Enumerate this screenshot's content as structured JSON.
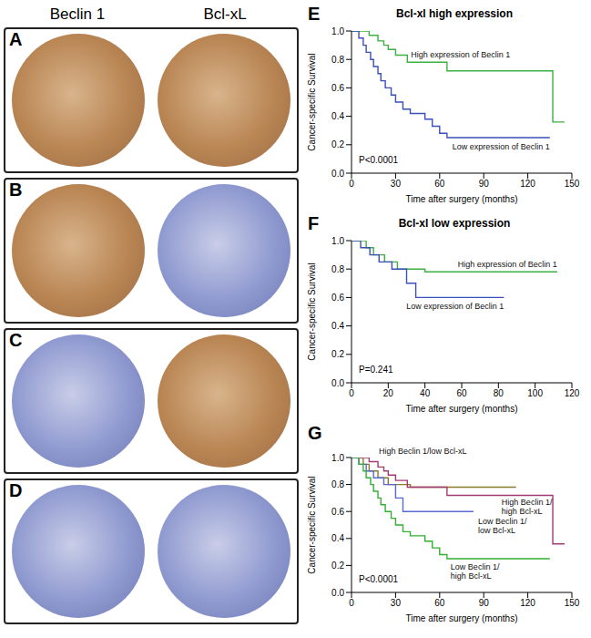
{
  "ihc_figure": {
    "column_headers": [
      "Beclin 1",
      "Bcl-xL"
    ],
    "rows": [
      "A",
      "B",
      "C",
      "D"
    ]
  },
  "chart_data": [
    {
      "type": "line",
      "panel": "E",
      "title": "Bcl-xl high expression",
      "x_label": "Time after surgery (months)",
      "y_label": "Cancer-specific Survival",
      "xlim": [
        0,
        150
      ],
      "xticks": [
        0,
        30,
        60,
        90,
        120,
        150
      ],
      "ylim": [
        0,
        1
      ],
      "yticks": [
        {
          "value": 0,
          "label": "0.0"
        },
        {
          "value": 0.2,
          "label": "0.2"
        },
        {
          "value": 0.4,
          "label": "0.4"
        },
        {
          "value": 0.6,
          "label": "0.6"
        },
        {
          "value": 0.8,
          "label": "0.8"
        },
        {
          "value": 1,
          "label": "1.0"
        }
      ],
      "grid": false,
      "line_style": "step",
      "annotations": [
        "P<0.0001"
      ],
      "series": [
        {
          "name": "High expression of Beclin 1",
          "color": "#3cb043",
          "x": [
            0,
            12,
            18,
            22,
            25,
            30,
            38,
            65,
            137,
            145
          ],
          "values": [
            1,
            0.97,
            0.93,
            0.9,
            0.87,
            0.83,
            0.78,
            0.72,
            0.36,
            0.36
          ]
        },
        {
          "name": "Low expression of Beclin 1",
          "color": "#3a4fb8",
          "x": [
            0,
            5,
            8,
            10,
            13,
            15,
            18,
            20,
            23,
            27,
            30,
            35,
            40,
            50,
            55,
            60,
            65,
            135
          ],
          "values": [
            1,
            0.95,
            0.9,
            0.85,
            0.8,
            0.75,
            0.7,
            0.65,
            0.6,
            0.55,
            0.5,
            0.45,
            0.42,
            0.38,
            0.33,
            0.28,
            0.25,
            0.25
          ]
        }
      ]
    },
    {
      "type": "line",
      "panel": "F",
      "title": "Bcl-xl low expression",
      "x_label": "Time after surgery (months)",
      "y_label": "Cancer-specific Survival",
      "xlim": [
        0,
        120
      ],
      "xticks": [
        0,
        20,
        40,
        60,
        80,
        100,
        120
      ],
      "ylim": [
        0,
        1
      ],
      "yticks": [
        {
          "value": 0,
          "label": "0.0"
        },
        {
          "value": 0.2,
          "label": "0.2"
        },
        {
          "value": 0.4,
          "label": "0.4"
        },
        {
          "value": 0.6,
          "label": "0.6"
        },
        {
          "value": 0.8,
          "label": "0.8"
        },
        {
          "value": 1,
          "label": "1.0"
        }
      ],
      "grid": false,
      "line_style": "step",
      "annotations": [
        "P=0.241"
      ],
      "series": [
        {
          "name": "High expression of Beclin 1",
          "color": "#3cb043",
          "x": [
            0,
            8,
            12,
            18,
            25,
            40,
            112
          ],
          "values": [
            1,
            0.95,
            0.9,
            0.85,
            0.8,
            0.78,
            0.78
          ]
        },
        {
          "name": "Low expression of Beclin 1",
          "color": "#3a4fb8",
          "x": [
            0,
            5,
            10,
            15,
            22,
            30,
            35,
            83
          ],
          "values": [
            1,
            0.95,
            0.9,
            0.85,
            0.8,
            0.7,
            0.6,
            0.6
          ]
        }
      ]
    },
    {
      "type": "line",
      "panel": "G",
      "x_label": "Time after surgery (months)",
      "y_label": "Cancer-specific Survival",
      "xlim": [
        0,
        150
      ],
      "xticks": [
        0,
        30,
        60,
        90,
        120,
        150
      ],
      "ylim": [
        0,
        1
      ],
      "yticks": [
        {
          "value": 0,
          "label": "0.0"
        },
        {
          "value": 0.2,
          "label": "0.2"
        },
        {
          "value": 0.4,
          "label": "0.4"
        },
        {
          "value": 0.6,
          "label": "0.6"
        },
        {
          "value": 0.8,
          "label": "0.8"
        },
        {
          "value": 1,
          "label": "1.0"
        }
      ],
      "grid": false,
      "line_style": "step",
      "annotations": [
        "P<0.0001"
      ],
      "series": [
        {
          "name": "High Beclin 1/low Bcl-xL",
          "color": "#8c7a2a",
          "x": [
            0,
            8,
            12,
            18,
            25,
            40,
            112
          ],
          "values": [
            1,
            0.95,
            0.9,
            0.85,
            0.8,
            0.78,
            0.78
          ]
        },
        {
          "name": "High Beclin 1/high Bcl-xL",
          "color": "#a23b72",
          "x": [
            0,
            12,
            18,
            22,
            25,
            30,
            38,
            65,
            137,
            145
          ],
          "values": [
            1,
            0.97,
            0.93,
            0.9,
            0.87,
            0.83,
            0.78,
            0.72,
            0.36,
            0.36
          ]
        },
        {
          "name": "Low Beclin 1/low Bcl-xL",
          "color": "#5a6ad0",
          "x": [
            0,
            5,
            10,
            15,
            22,
            30,
            35,
            83
          ],
          "values": [
            1,
            0.95,
            0.9,
            0.85,
            0.8,
            0.7,
            0.6,
            0.6
          ]
        },
        {
          "name": "Low Beclin 1/high Bcl-xL",
          "color": "#33b033",
          "x": [
            0,
            5,
            8,
            10,
            13,
            15,
            18,
            20,
            23,
            27,
            30,
            35,
            40,
            50,
            55,
            60,
            65,
            135
          ],
          "values": [
            1,
            0.95,
            0.9,
            0.85,
            0.8,
            0.75,
            0.7,
            0.65,
            0.6,
            0.55,
            0.5,
            0.45,
            0.42,
            0.38,
            0.33,
            0.28,
            0.25,
            0.25
          ]
        }
      ]
    }
  ]
}
